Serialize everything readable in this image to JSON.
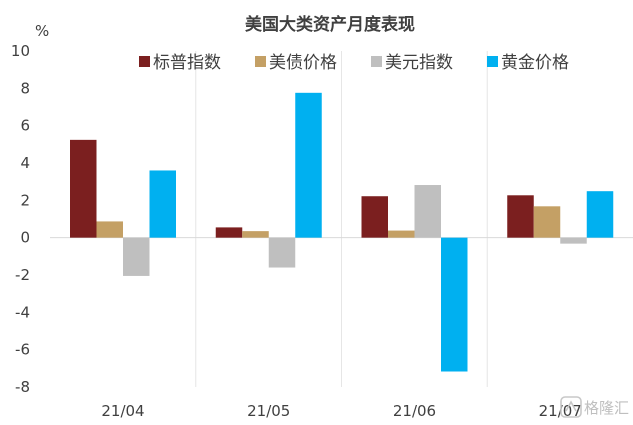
{
  "chart_data": {
    "type": "bar",
    "title": "美国大类资产月度表现",
    "unit": "%",
    "categories": [
      "21/04",
      "21/05",
      "21/06",
      "21/07"
    ],
    "series": [
      {
        "name": "标普指数",
        "color": "#7b1f1f",
        "values": [
          5.24,
          0.55,
          2.22,
          2.27
        ]
      },
      {
        "name": "美债价格",
        "color": "#c4a065",
        "values": [
          0.87,
          0.35,
          0.38,
          1.68
        ]
      },
      {
        "name": "美元指数",
        "color": "#bfbfbf",
        "values": [
          -2.05,
          -1.6,
          2.82,
          -0.32
        ]
      },
      {
        "name": "黄金价格",
        "color": "#00b0f0",
        "values": [
          3.6,
          7.76,
          -7.17,
          2.49
        ]
      }
    ],
    "ylim": [
      -8,
      10
    ],
    "yticks": [
      -8,
      -6,
      -4,
      -2,
      0,
      2,
      4,
      6,
      8,
      10
    ],
    "grid": "vertical category separators",
    "legend_position": "top"
  },
  "watermark": {
    "text": "格隆汇",
    "icon": "gelonghui-logo-icon"
  }
}
